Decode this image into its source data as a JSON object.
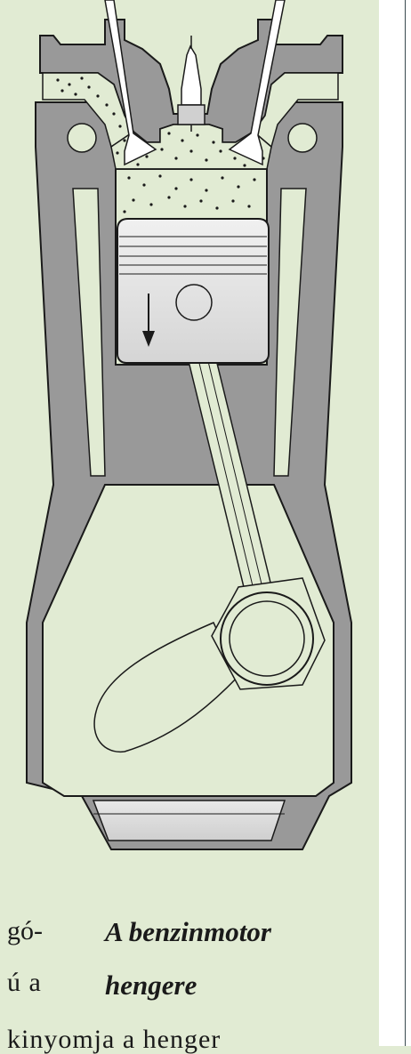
{
  "figure": {
    "caption_line_1": "A benzinmotor",
    "caption_line_2": "hengere",
    "colors": {
      "background": "#e1ebd3",
      "engine_wall": "#999999",
      "outline": "#1a1a1a",
      "interior": "#e1ebd3",
      "piston_top": "#f0f0f0",
      "piston_bottom": "#d9d9d9",
      "sump_oil": "#dcdcdc"
    }
  },
  "body_text": {
    "line_1": "gó-",
    "line_2": "ú a",
    "line_3": "kinyomja a henger"
  }
}
